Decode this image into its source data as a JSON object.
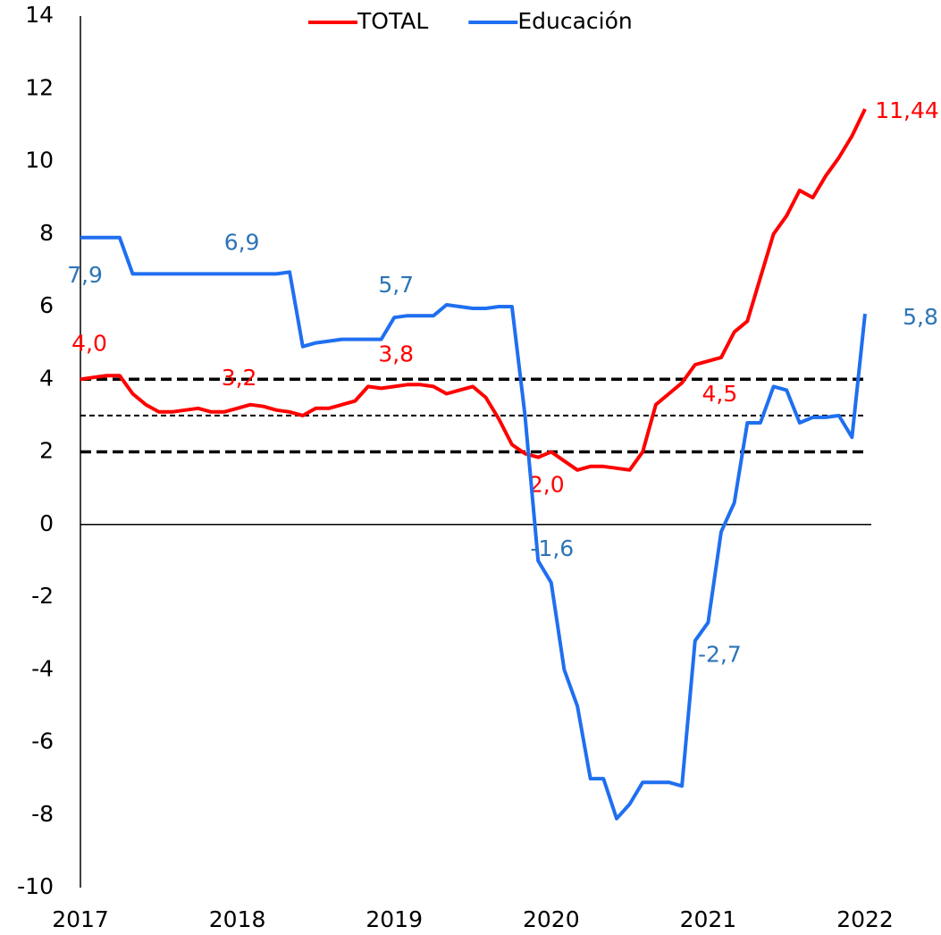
{
  "chart_data": {
    "type": "line",
    "x": [
      2017,
      2017.083,
      2017.167,
      2017.25,
      2017.333,
      2017.417,
      2017.5,
      2017.583,
      2017.667,
      2017.75,
      2017.833,
      2017.917,
      2018,
      2018.083,
      2018.167,
      2018.25,
      2018.333,
      2018.417,
      2018.5,
      2018.583,
      2018.667,
      2018.75,
      2018.833,
      2018.917,
      2019,
      2019.083,
      2019.167,
      2019.25,
      2019.333,
      2019.417,
      2019.5,
      2019.583,
      2019.667,
      2019.75,
      2019.833,
      2019.917,
      2020,
      2020.083,
      2020.167,
      2020.25,
      2020.333,
      2020.417,
      2020.5,
      2020.583,
      2020.667,
      2020.75,
      2020.833,
      2020.917,
      2021,
      2021.083,
      2021.167,
      2021.25,
      2021.333,
      2021.417,
      2021.5,
      2021.583,
      2021.667,
      2021.75,
      2021.833,
      2021.917,
      2022
    ],
    "series": [
      {
        "name": "TOTAL",
        "color": "#ff0000",
        "values": [
          4.0,
          4.05,
          4.1,
          4.1,
          3.6,
          3.3,
          3.1,
          3.1,
          3.15,
          3.2,
          3.1,
          3.1,
          3.2,
          3.3,
          3.25,
          3.15,
          3.1,
          3.0,
          3.2,
          3.2,
          3.3,
          3.4,
          3.8,
          3.75,
          3.8,
          3.85,
          3.85,
          3.8,
          3.6,
          3.7,
          3.8,
          3.5,
          2.9,
          2.2,
          1.95,
          1.85,
          2.0,
          1.75,
          1.5,
          1.6,
          1.6,
          1.55,
          1.5,
          2.0,
          3.3,
          3.6,
          3.9,
          4.4,
          4.5,
          4.6,
          5.3,
          5.6,
          6.8,
          8.0,
          8.5,
          9.2,
          9.0,
          9.6,
          10.1,
          10.7,
          11.44
        ],
        "value_labels": [
          "4,0",
          null,
          null,
          null,
          null,
          null,
          null,
          null,
          null,
          null,
          null,
          null,
          "3,2",
          null,
          null,
          null,
          null,
          null,
          null,
          null,
          null,
          null,
          null,
          null,
          "3,8",
          null,
          null,
          null,
          null,
          null,
          null,
          null,
          null,
          null,
          null,
          null,
          "2,0",
          null,
          null,
          null,
          null,
          null,
          null,
          null,
          null,
          null,
          null,
          null,
          "4,5",
          null,
          null,
          null,
          null,
          null,
          null,
          null,
          null,
          null,
          null,
          null,
          "11,44"
        ]
      },
      {
        "name": "Educación",
        "color": "#1f6ff0",
        "values": [
          7.9,
          7.9,
          7.9,
          7.9,
          6.9,
          6.9,
          6.9,
          6.9,
          6.9,
          6.9,
          6.9,
          6.9,
          6.9,
          6.9,
          6.9,
          6.9,
          6.95,
          4.9,
          5.0,
          5.05,
          5.1,
          5.1,
          5.1,
          5.1,
          5.7,
          5.75,
          5.75,
          5.75,
          6.05,
          6.0,
          5.95,
          5.95,
          6.0,
          6.0,
          3.0,
          -1.0,
          -1.6,
          -4.0,
          -5.0,
          -7.0,
          -7.0,
          -8.1,
          -7.7,
          -7.1,
          -7.1,
          -7.1,
          -7.2,
          -3.2,
          -2.7,
          -0.2,
          0.6,
          2.8,
          2.8,
          3.8,
          3.7,
          2.8,
          2.95,
          2.95,
          3.0,
          2.4,
          5.8
        ],
        "value_labels": [
          "7,9",
          null,
          null,
          null,
          null,
          null,
          null,
          null,
          null,
          null,
          null,
          null,
          "6,9",
          null,
          null,
          null,
          null,
          null,
          null,
          null,
          null,
          null,
          null,
          null,
          "5,7",
          null,
          null,
          null,
          null,
          null,
          null,
          null,
          null,
          null,
          null,
          null,
          "-1,6",
          null,
          null,
          null,
          null,
          null,
          null,
          null,
          null,
          null,
          null,
          null,
          "-2,7",
          null,
          null,
          null,
          null,
          null,
          null,
          null,
          null,
          null,
          null,
          null,
          "5,8"
        ]
      }
    ],
    "label_colors": [
      "#ff0000",
      "#2e75b6"
    ],
    "xlim": [
      2017,
      2022
    ],
    "xticks": [
      2017,
      2018,
      2019,
      2020,
      2021,
      2022
    ],
    "ylim": [
      -10,
      14
    ],
    "yticks": [
      -10,
      -8,
      -6,
      -4,
      -2,
      0,
      2,
      4,
      6,
      8,
      10,
      12,
      14
    ],
    "reference_lines": [
      4,
      3,
      2
    ]
  }
}
